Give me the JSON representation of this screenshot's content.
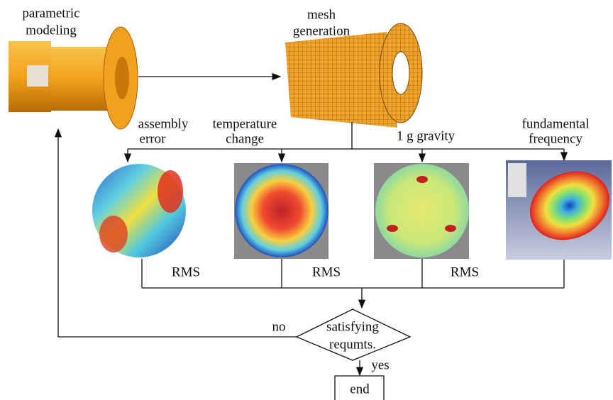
{
  "model": {
    "label": [
      "parametric",
      "modeling"
    ]
  },
  "mesh": {
    "label": [
      "mesh",
      "generation"
    ]
  },
  "analyses": [
    {
      "label": [
        "assembly",
        "error"
      ]
    },
    {
      "label": [
        "temperature",
        "change"
      ]
    },
    {
      "label": [
        "1 g gravity"
      ]
    },
    {
      "label": [
        "fundamental",
        "frequency"
      ]
    }
  ],
  "rms_labels": [
    "RMS",
    "RMS",
    "RMS"
  ],
  "decision": {
    "label": [
      "satisfying",
      "requmts."
    ],
    "no": "no",
    "yes": "yes"
  },
  "end": "end"
}
